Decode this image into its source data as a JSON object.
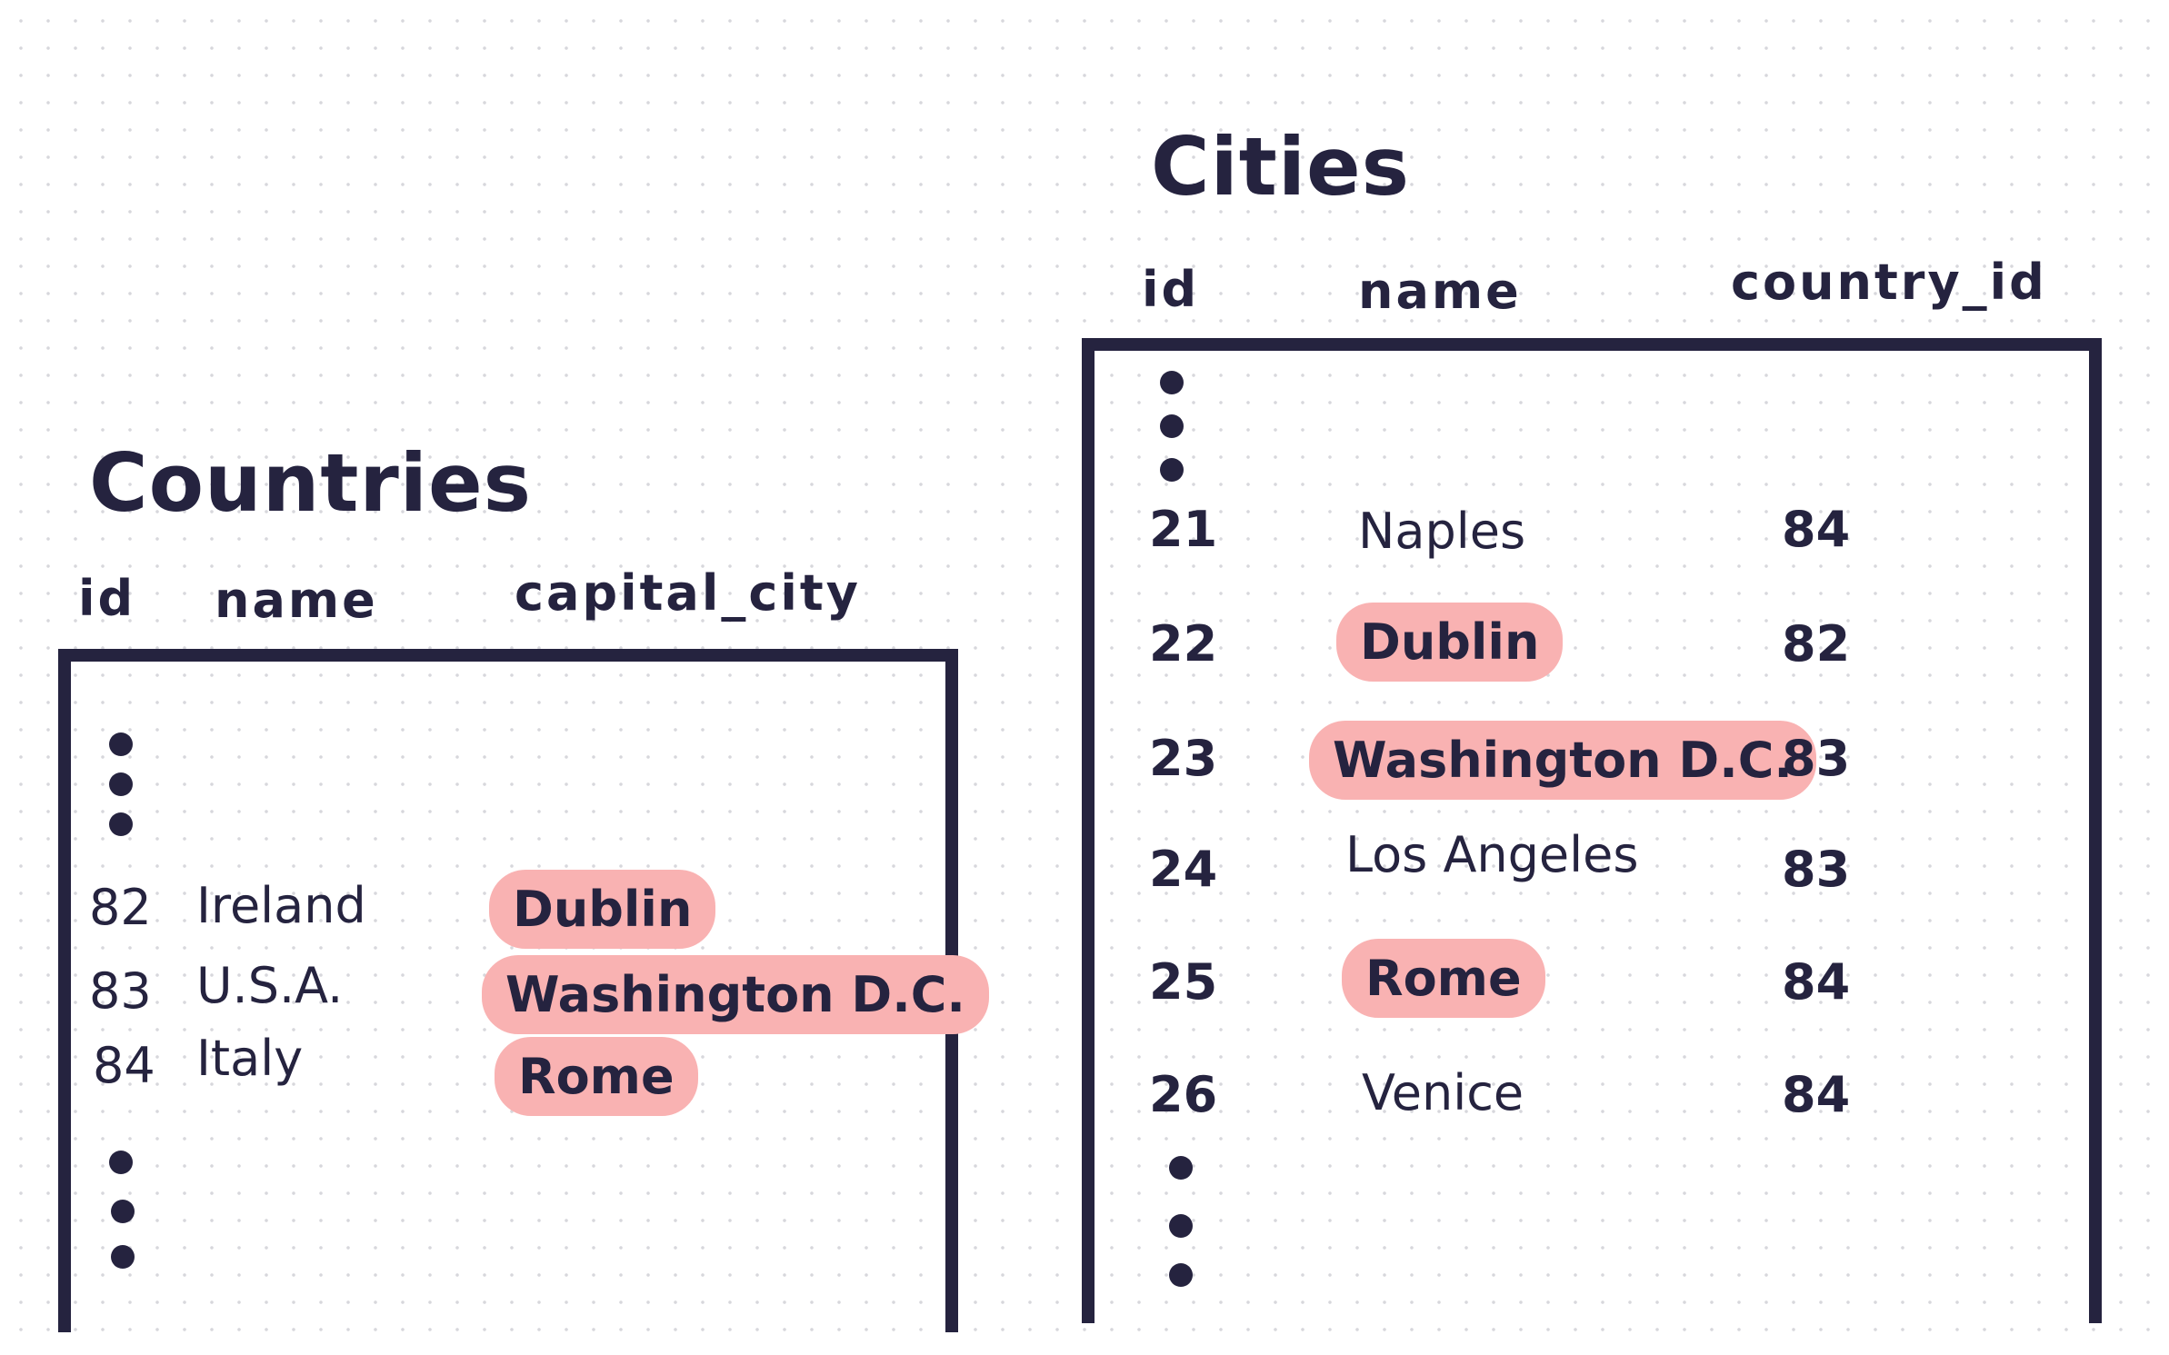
{
  "countries": {
    "title": "Countries",
    "columns": [
      "id",
      "name",
      "capital_city"
    ],
    "rows": [
      {
        "id": "82",
        "name": "Ireland",
        "capital_city": "Dublin"
      },
      {
        "id": "83",
        "name": "U.S.A.",
        "capital_city": "Washington D.C."
      },
      {
        "id": "84",
        "name": "Italy",
        "capital_city": "Rome"
      }
    ]
  },
  "cities": {
    "title": "Cities",
    "columns": [
      "id",
      "name",
      "country_id"
    ],
    "rows": [
      {
        "id": "21",
        "name": "Naples",
        "country_id": "84"
      },
      {
        "id": "22",
        "name": "Dublin",
        "country_id": "82"
      },
      {
        "id": "23",
        "name": "Washington D.C.",
        "country_id": "83"
      },
      {
        "id": "24",
        "name": "Los Angeles",
        "country_id": "83"
      },
      {
        "id": "25",
        "name": "Rome",
        "country_id": "84"
      },
      {
        "id": "26",
        "name": "Venice",
        "country_id": "84"
      }
    ]
  },
  "colors": {
    "ink": "#25233f",
    "highlight": "#f9b2b2",
    "grid_dot": "#d7d7dc"
  }
}
